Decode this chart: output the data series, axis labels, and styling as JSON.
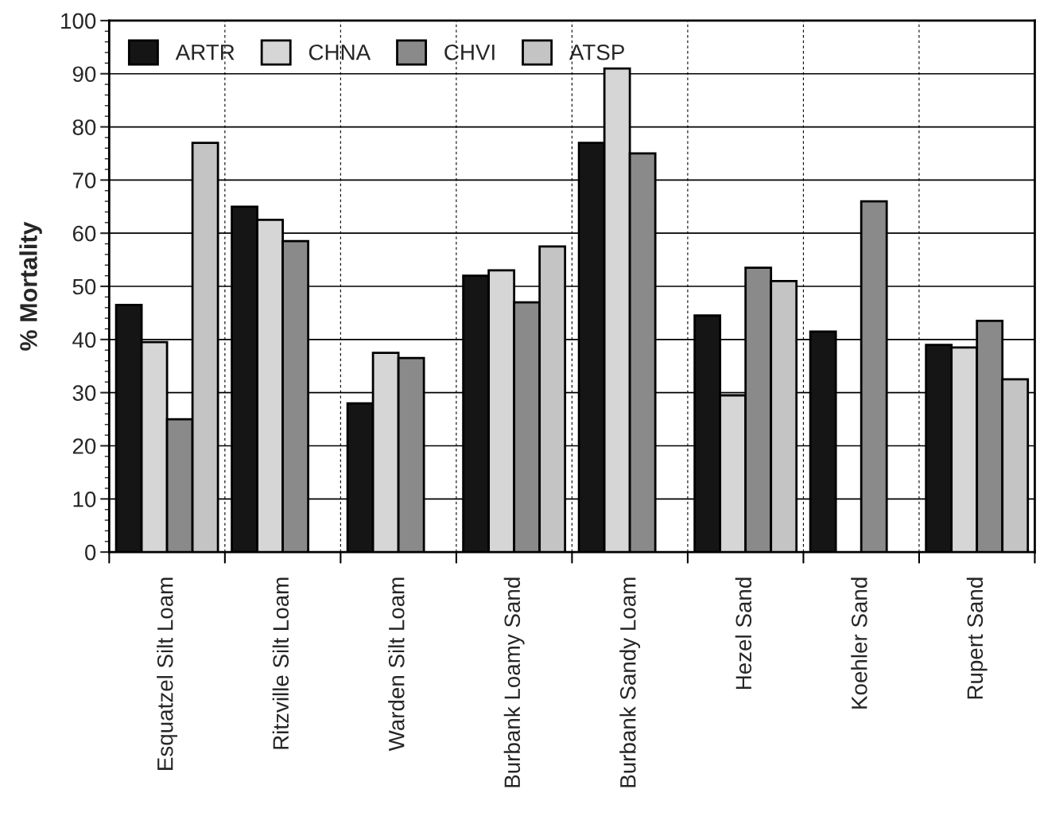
{
  "chart_data": {
    "type": "bar",
    "ylabel": "% Mortality",
    "categories": [
      "Esquatzel Silt Loam",
      "Ritzville Silt Loam",
      "Warden Silt Loam",
      "Burbank Loamy Sand",
      "Burbank Sandy Loam",
      "Hezel Sand",
      "Koehler Sand",
      "Rupert Sand"
    ],
    "series": [
      {
        "name": "ARTR",
        "color": "#151515",
        "values": [
          46.5,
          65,
          28,
          52,
          77,
          44.5,
          41.5,
          39
        ]
      },
      {
        "name": "CHNA",
        "color": "#d6d6d6",
        "values": [
          39.5,
          62.5,
          37.5,
          53,
          91,
          29.5,
          null,
          38.5
        ]
      },
      {
        "name": "CHVI",
        "color": "#8a8a8a",
        "values": [
          25,
          58.5,
          36.5,
          47,
          75,
          53.5,
          66,
          43.5
        ]
      },
      {
        "name": "ATSP",
        "color": "#c4c4c4",
        "values": [
          77,
          null,
          null,
          57.5,
          null,
          51,
          null,
          32.5
        ]
      }
    ],
    "ylim": [
      0,
      100
    ],
    "yticks": [
      0,
      10,
      20,
      30,
      40,
      50,
      60,
      70,
      80,
      90,
      100
    ],
    "grid": true,
    "legend": "top left"
  }
}
